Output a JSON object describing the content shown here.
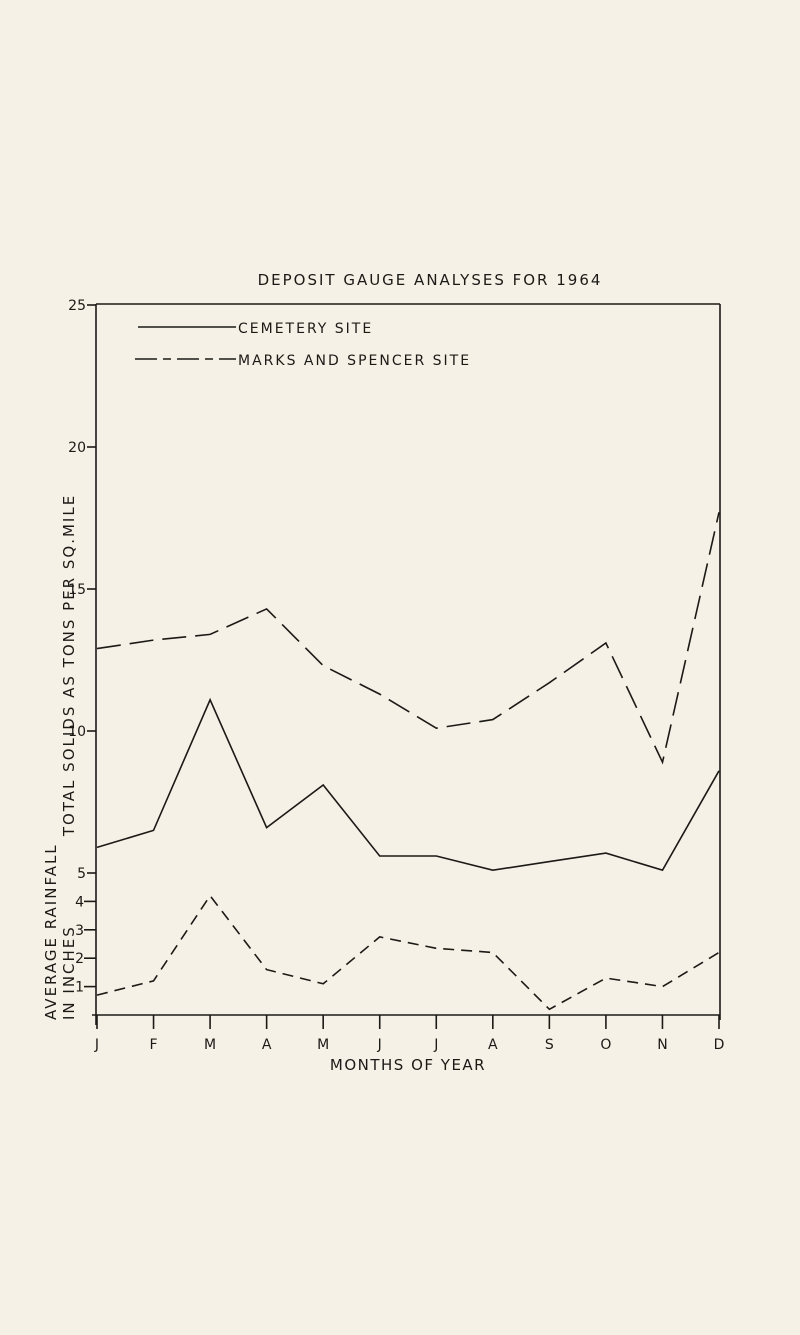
{
  "page": {
    "background": "#f6f1e6",
    "ink": "#1c1a17"
  },
  "chart_data": {
    "type": "line",
    "title": "DEPOSIT GAUGE ANALYSES FOR 1964",
    "xlabel": "MONTHS OF YEAR",
    "ylabel": "TOTAL SOLIDS AS TONS PER SQ.MILE",
    "ylabel_secondary": "AVERAGE RAINFALL IN INCHES",
    "categories": [
      "J",
      "F",
      "M",
      "A",
      "M",
      "J",
      "J",
      "A",
      "S",
      "O",
      "N",
      "D"
    ],
    "ylim": [
      0,
      25
    ],
    "y_ticks_primary": [
      "25",
      "20",
      "15",
      "10",
      "5"
    ],
    "y_ticks_secondary": [
      "4",
      "3",
      "2",
      "1"
    ],
    "grid": false,
    "legend_position": "top-left inside",
    "legend": [
      {
        "label": "CEMETERY SITE",
        "style": "solid"
      },
      {
        "label": "MARKS AND SPENCER SITE",
        "style": "dashed"
      }
    ],
    "series": [
      {
        "name": "Cemetery site (total solids, tons/sq.mile)",
        "style": "solid",
        "values": [
          5.9,
          6.5,
          11.1,
          6.6,
          8.1,
          5.6,
          5.6,
          5.1,
          5.4,
          5.7,
          5.1,
          8.6
        ]
      },
      {
        "name": "Marks and Spencer site (total solids, tons/sq.mile)",
        "style": "dashed",
        "values": [
          12.9,
          13.2,
          13.4,
          14.3,
          12.3,
          11.3,
          10.1,
          10.4,
          11.7,
          13.1,
          8.9,
          17.7
        ]
      },
      {
        "name": "Average rainfall (inches)",
        "style": "dashed",
        "values": [
          0.7,
          1.2,
          4.2,
          1.6,
          1.1,
          2.75,
          2.35,
          2.2,
          0.2,
          1.3,
          1.0,
          2.2
        ]
      }
    ]
  }
}
